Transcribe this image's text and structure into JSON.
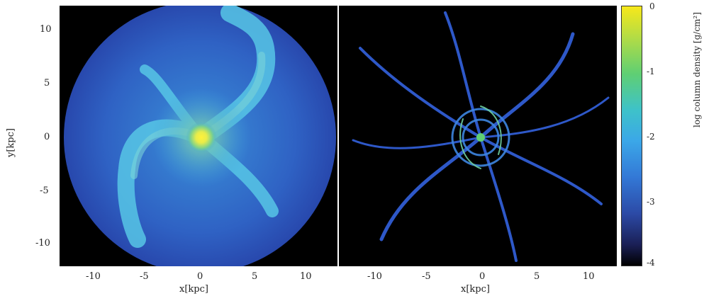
{
  "left_panel": {
    "x_ticks": [
      "-10",
      "-5",
      "0",
      "5",
      "10"
    ],
    "y_ticks": [
      "10",
      "5",
      "0",
      "-5",
      "-10"
    ],
    "xlabel": "x[kpc]",
    "ylabel": "y[kpc]"
  },
  "right_panel": {
    "x_ticks": [
      "-10",
      "-5",
      "0",
      "5",
      "10"
    ],
    "xlabel": "x[kpc]"
  },
  "colorbar": {
    "ticks": [
      "0",
      "-1",
      "-2",
      "-3",
      "-4"
    ],
    "label": "log column density [g/cm²]",
    "colors": [
      "#f7e81a",
      "#5fcf73",
      "#3ba7e8",
      "#2c4aa6",
      "#000000"
    ]
  }
}
